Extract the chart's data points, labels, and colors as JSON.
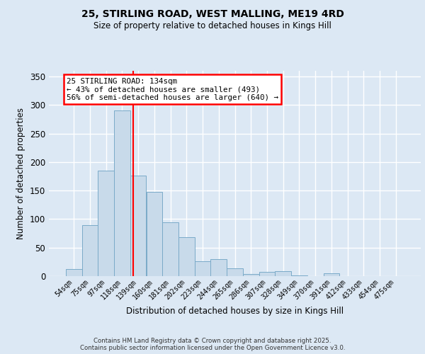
{
  "title_line1": "25, STIRLING ROAD, WEST MALLING, ME19 4RD",
  "title_line2": "Size of property relative to detached houses in Kings Hill",
  "xlabel": "Distribution of detached houses by size in Kings Hill",
  "ylabel": "Number of detached properties",
  "footer_line1": "Contains HM Land Registry data © Crown copyright and database right 2025.",
  "footer_line2": "Contains public sector information licensed under the Open Government Licence v3.0.",
  "categories": [
    "54sqm",
    "75sqm",
    "97sqm",
    "118sqm",
    "139sqm",
    "160sqm",
    "181sqm",
    "202sqm",
    "223sqm",
    "244sqm",
    "265sqm",
    "286sqm",
    "307sqm",
    "328sqm",
    "349sqm",
    "370sqm",
    "391sqm",
    "412sqm",
    "433sqm",
    "454sqm",
    "475sqm"
  ],
  "values": [
    13,
    89,
    185,
    290,
    176,
    148,
    94,
    68,
    26,
    30,
    14,
    4,
    7,
    9,
    1,
    0,
    5,
    0,
    0,
    0,
    0
  ],
  "bar_color": "#c8daea",
  "bar_edge_color": "#7aaac8",
  "vline_x": 3.7,
  "vline_color": "red",
  "annotation_text": "25 STIRLING ROAD: 134sqm\n← 43% of detached houses are smaller (493)\n56% of semi-detached houses are larger (640) →",
  "ylim": [
    0,
    360
  ],
  "yticks": [
    0,
    50,
    100,
    150,
    200,
    250,
    300,
    350
  ],
  "bg_color": "#dce8f4",
  "grid_color": "white"
}
